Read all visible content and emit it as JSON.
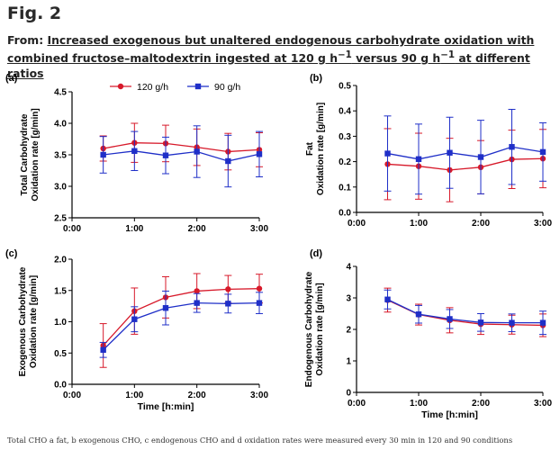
{
  "figure": {
    "label": "Fig. 2",
    "title_prefix": "From: ",
    "title_link": "Increased exogenous but unaltered endogenous carbohydrate oxidation with combined fructose–maltodextrin ingested at 120 g h",
    "title_link_sup": "−1",
    "title_link_mid": " versus 90 g h",
    "title_link_sup2": "−1",
    "title_link_end": " at different ratios",
    "caption": "Total CHO a fat, b exogenous CHO, c endogenous CHO and d oxidation rates were measured every 30 min in 120 and 90 conditions"
  },
  "legend": [
    {
      "name": "120 g/h",
      "color": "#d7192a",
      "marker": "circle"
    },
    {
      "name": "90 g/h",
      "color": "#1f2fc8",
      "marker": "square"
    }
  ],
  "colors": {
    "series_120": "#d7192a",
    "series_90": "#1f2fc8",
    "axis": "#000000"
  },
  "chart_data": [
    {
      "panel": "(a)",
      "type": "line",
      "ylabel": [
        "Total Carbohydrate",
        "Oxidation rate [g/min]"
      ],
      "xlabel": "",
      "x": [
        0.5,
        1.0,
        1.5,
        2.0,
        2.5,
        3.0
      ],
      "xticks": [
        "0:00",
        "1:00",
        "2:00",
        "3:00"
      ],
      "xlim": [
        0,
        3
      ],
      "ylim": [
        2.5,
        4.5
      ],
      "yticks": [
        "2.5",
        "3.0",
        "3.5",
        "4.0",
        "4.5"
      ],
      "series": [
        {
          "name": "120 g/h",
          "values": [
            3.6,
            3.69,
            3.68,
            3.62,
            3.55,
            3.58
          ],
          "err": [
            0.2,
            0.31,
            0.29,
            0.29,
            0.29,
            0.27
          ]
        },
        {
          "name": "90 g/h",
          "values": [
            3.5,
            3.56,
            3.49,
            3.55,
            3.4,
            3.51
          ],
          "err": [
            0.29,
            0.31,
            0.29,
            0.41,
            0.41,
            0.36
          ]
        }
      ]
    },
    {
      "panel": "(b)",
      "type": "line",
      "ylabel": [
        "Fat",
        "Oxidation rate [g/min]"
      ],
      "xlabel": "",
      "x": [
        0.5,
        1.0,
        1.5,
        2.0,
        2.5,
        3.0
      ],
      "xticks": [
        "0:00",
        "1:00",
        "2:00",
        "3:00"
      ],
      "xlim": [
        0,
        3
      ],
      "ylim": [
        0,
        0.5
      ],
      "yticks": [
        "0.0",
        "0.1",
        "0.2",
        "0.3",
        "0.4",
        "0.5"
      ],
      "series": [
        {
          "name": "120 g/h",
          "values": [
            0.19,
            0.182,
            0.167,
            0.178,
            0.209,
            0.212
          ],
          "err": [
            0.14,
            0.13,
            0.125,
            0.105,
            0.115,
            0.115
          ]
        },
        {
          "name": "90 g/h",
          "values": [
            0.232,
            0.21,
            0.235,
            0.218,
            0.258,
            0.238
          ],
          "err": [
            0.148,
            0.138,
            0.14,
            0.145,
            0.148,
            0.115
          ]
        }
      ]
    },
    {
      "panel": "(c)",
      "type": "line",
      "ylabel": [
        "Exogenous Carbohydrate",
        "Oxidation rate [g/min]"
      ],
      "xlabel": "Time [h:min]",
      "x": [
        0.5,
        1.0,
        1.5,
        2.0,
        2.5,
        3.0
      ],
      "xticks": [
        "0:00",
        "1:00",
        "2:00",
        "3:00"
      ],
      "xlim": [
        0,
        3
      ],
      "ylim": [
        0,
        2
      ],
      "yticks": [
        "0.0",
        "0.5",
        "1.0",
        "1.5",
        "2.0"
      ],
      "series": [
        {
          "name": "120 g/h",
          "values": [
            0.62,
            1.17,
            1.39,
            1.49,
            1.52,
            1.53
          ],
          "err": [
            0.35,
            0.37,
            0.33,
            0.28,
            0.22,
            0.23
          ]
        },
        {
          "name": "90 g/h",
          "values": [
            0.55,
            1.04,
            1.22,
            1.3,
            1.29,
            1.3
          ],
          "err": [
            0.12,
            0.2,
            0.27,
            0.15,
            0.15,
            0.17
          ]
        }
      ]
    },
    {
      "panel": "(d)",
      "type": "line",
      "ylabel": [
        "Endogenous Carbohydrate",
        "Oxidation rate [g/min]"
      ],
      "xlabel": "Time [h:min]",
      "x": [
        0.5,
        1.0,
        1.5,
        2.0,
        2.5,
        3.0
      ],
      "xticks": [
        "0:00",
        "1:00",
        "2:00",
        "3:00"
      ],
      "xlim": [
        0,
        3
      ],
      "ylim": [
        0,
        4
      ],
      "yticks": [
        "0",
        "1",
        "2",
        "3",
        "4"
      ],
      "series": [
        {
          "name": "120 g/h",
          "values": [
            2.93,
            2.47,
            2.29,
            2.17,
            2.15,
            2.13
          ],
          "err": [
            0.38,
            0.33,
            0.4,
            0.33,
            0.3,
            0.36
          ]
        },
        {
          "name": "90 g/h",
          "values": [
            2.95,
            2.48,
            2.33,
            2.22,
            2.21,
            2.21
          ],
          "err": [
            0.3,
            0.28,
            0.3,
            0.28,
            0.28,
            0.37
          ]
        }
      ]
    }
  ]
}
